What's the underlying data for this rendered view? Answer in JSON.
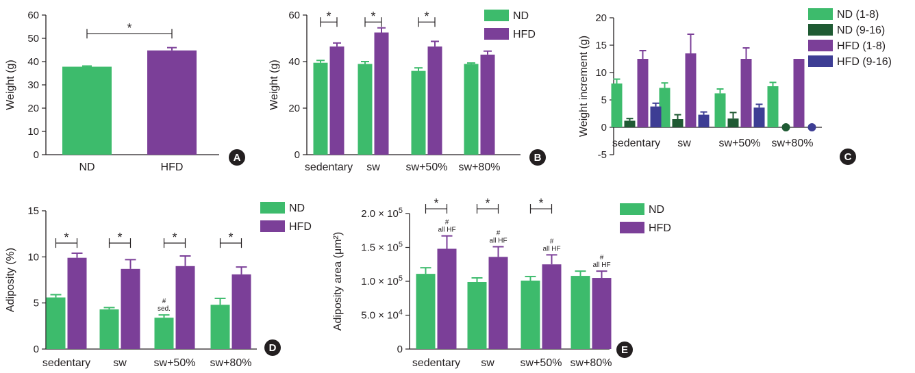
{
  "colors": {
    "nd": "#3dbb6c",
    "nd_late": "#1f5a33",
    "hfd": "#7b3f98",
    "hfd_late": "#3d3d94",
    "axis": "#231f20"
  },
  "chart_data": [
    {
      "panel": "A",
      "type": "bar",
      "ylabel": "Weight (g)",
      "ylim": [
        0,
        60
      ],
      "yticks": [
        "0",
        "10",
        "20",
        "30",
        "40",
        "50",
        "60"
      ],
      "categories": [
        "ND",
        "HFD"
      ],
      "series": [
        {
          "values": [
            37.8,
            44.8
          ],
          "errors": [
            0.3,
            1.2
          ]
        }
      ],
      "legend": [],
      "significance": [
        {
          "label": "*",
          "from": 0,
          "to": 1,
          "y": 52
        }
      ],
      "annotations": []
    },
    {
      "panel": "B",
      "type": "bar",
      "ylabel": "Weight (g)",
      "ylim": [
        0,
        60
      ],
      "yticks": [
        "0",
        "20",
        "40",
        "60"
      ],
      "categories": [
        "sedentary",
        "sw",
        "sw+50%",
        "sw+80%"
      ],
      "series": [
        {
          "name": "ND",
          "values": [
            39.5,
            39,
            36,
            39
          ],
          "errors": [
            1,
            1,
            1.3,
            0.4
          ]
        },
        {
          "name": "HFD",
          "values": [
            46.5,
            52.5,
            46.5,
            43
          ],
          "errors": [
            1.5,
            2,
            2.2,
            1.5
          ]
        }
      ],
      "legend": [
        "ND",
        "HFD"
      ],
      "significance": [
        {
          "label": "*",
          "group": 0,
          "y": 57
        },
        {
          "label": "*",
          "group": 1,
          "y": 57
        },
        {
          "label": "*",
          "group": 2,
          "y": 57
        }
      ],
      "annotations": []
    },
    {
      "panel": "C",
      "type": "bar",
      "ylabel": "Weight increment (g)",
      "ylim": [
        -5,
        20
      ],
      "yticks": [
        "-5",
        "0",
        "5",
        "10",
        "15",
        "20"
      ],
      "categories": [
        "sedentary",
        "sw",
        "sw+50%",
        "sw+80%"
      ],
      "series": [
        {
          "name": "ND (1-8)",
          "values": [
            8,
            7.2,
            6.2,
            7.5
          ],
          "errors": [
            0.8,
            0.9,
            0.8,
            0.7
          ]
        },
        {
          "name": "ND (9-16)",
          "values": [
            1.2,
            1.5,
            1.6,
            0.2
          ],
          "errors": [
            0.4,
            0.8,
            1.1,
            0
          ]
        },
        {
          "name": "HFD (1-8)",
          "values": [
            12.5,
            13.5,
            12.5,
            12.5
          ],
          "errors": [
            1.5,
            3.5,
            2,
            0
          ]
        },
        {
          "name": "HFD (9-16)",
          "values": [
            3.8,
            2.3,
            3.6,
            -0.2
          ],
          "errors": [
            0.6,
            0.5,
            0.6,
            0
          ]
        }
      ],
      "legend": [
        "ND (1-8)",
        "ND (9-16)",
        "HFD (1-8)",
        "HFD (9-16)"
      ],
      "significance": [],
      "annotations": []
    },
    {
      "panel": "D",
      "type": "bar",
      "ylabel": "Adiposity (%)",
      "ylim": [
        0,
        15
      ],
      "yticks": [
        "0",
        "5",
        "10",
        "15"
      ],
      "categories": [
        "sedentary",
        "sw",
        "sw+50%",
        "sw+80%"
      ],
      "series": [
        {
          "name": "ND",
          "values": [
            5.6,
            4.3,
            3.4,
            4.8
          ],
          "errors": [
            0.3,
            0.2,
            0.3,
            0.7
          ]
        },
        {
          "name": "HFD",
          "values": [
            9.9,
            8.7,
            9.0,
            8.1
          ],
          "errors": [
            0.5,
            1.0,
            1.1,
            0.8
          ]
        }
      ],
      "legend": [
        "ND",
        "HFD"
      ],
      "significance": [
        {
          "label": "*",
          "group": 0,
          "y": 11.5
        },
        {
          "label": "*",
          "group": 1,
          "y": 11.5
        },
        {
          "label": "*",
          "group": 2,
          "y": 11.5
        },
        {
          "label": "*",
          "group": 3,
          "y": 11.5
        }
      ],
      "annotations": [
        {
          "group": 2,
          "series": 0,
          "lines": [
            "#",
            "sed."
          ]
        }
      ]
    },
    {
      "panel": "E",
      "type": "bar",
      "ylabel": "Adiposity area (μm²)",
      "ylim": [
        0,
        200000
      ],
      "yticks": [
        "0",
        "5.0×10⁴",
        "1.0×10⁵",
        "1.5×10⁵",
        "2.0×10⁵"
      ],
      "categories": [
        "sedentary",
        "sw",
        "sw+50%",
        "sw+80%"
      ],
      "series": [
        {
          "name": "ND",
          "values": [
            111000,
            99000,
            101000,
            108000
          ],
          "errors": [
            9000,
            6000,
            6000,
            7000
          ]
        },
        {
          "name": "HFD",
          "values": [
            148000,
            136000,
            125000,
            105000
          ],
          "errors": [
            19000,
            15000,
            14000,
            10000
          ]
        }
      ],
      "legend": [
        "ND",
        "HFD"
      ],
      "significance": [
        {
          "label": "*",
          "group": 0,
          "y": 207000
        },
        {
          "label": "*",
          "group": 1,
          "y": 207000
        },
        {
          "label": "*",
          "group": 2,
          "y": 207000
        }
      ],
      "annotations": [
        {
          "group": 0,
          "series": 1,
          "lines": [
            "#",
            "all HF"
          ]
        },
        {
          "group": 1,
          "series": 1,
          "lines": [
            "#",
            "all HF"
          ]
        },
        {
          "group": 2,
          "series": 1,
          "lines": [
            "#",
            "all HF"
          ]
        },
        {
          "group": 3,
          "series": 1,
          "lines": [
            "#",
            "all HF"
          ]
        }
      ]
    }
  ]
}
